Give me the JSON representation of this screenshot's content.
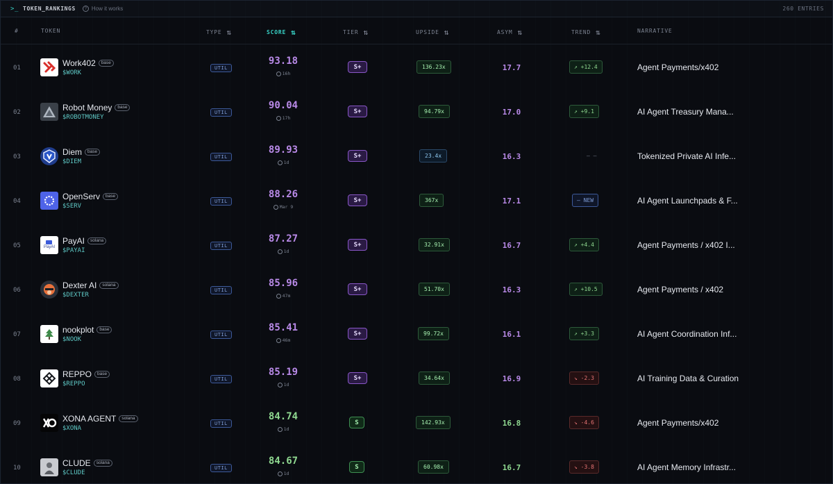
{
  "header": {
    "prompt_glyph": ">_",
    "title": "TOKEN_RANKINGS",
    "help": "How it works",
    "entries": "260 ENTRIES"
  },
  "columns": {
    "rank": "#",
    "token": "TOKEN",
    "type": "TYPE",
    "score": "SCORE",
    "tier": "TIER",
    "upside": "UPSIDE",
    "asym": "ASYM",
    "trend": "TREND",
    "narrative": "NARRATIVE",
    "sort_glyph": "⇅"
  },
  "colors": {
    "accent": "#38d3c7",
    "score_purple": "#b98ae8",
    "score_green": "#8fd890",
    "trend_down": "#e57373"
  },
  "rows": [
    {
      "rank": "01",
      "name": "Work402",
      "chain": "base",
      "ticker": "$WORK",
      "type": "UTIL",
      "score": "93.18",
      "age": "16h",
      "tier": "S+",
      "upside": "136.23x",
      "asym": "17.7",
      "trend": "↗ +12.4",
      "narrative": "Agent Payments/x402",
      "logo": "work402-logo"
    },
    {
      "rank": "02",
      "name": "Robot Money",
      "chain": "base",
      "ticker": "$ROBOTMONEY",
      "type": "UTIL",
      "score": "90.04",
      "age": "17h",
      "tier": "S+",
      "upside": "94.79x",
      "asym": "17.0",
      "trend": "↗ +9.1",
      "narrative": "AI Agent Treasury Mana...",
      "logo": "robot-money-logo"
    },
    {
      "rank": "03",
      "name": "Diem",
      "chain": "base",
      "ticker": "$DIEM",
      "type": "UTIL",
      "score": "89.93",
      "age": "1d",
      "tier": "S+",
      "upside": "23.4x",
      "asym": "16.3",
      "trend": "– –",
      "narrative": "Tokenized Private AI Infe...",
      "logo": "diem-logo"
    },
    {
      "rank": "04",
      "name": "OpenServ",
      "chain": "base",
      "ticker": "$SERV",
      "type": "UTIL",
      "score": "88.26",
      "age": "Mar 9",
      "tier": "S+",
      "upside": "367x",
      "asym": "17.1",
      "trend": "— NEW",
      "narrative": "AI Agent Launchpads & F...",
      "logo": "openserv-logo"
    },
    {
      "rank": "05",
      "name": "PayAI",
      "chain": "solana",
      "ticker": "$PAYAI",
      "type": "UTIL",
      "score": "87.27",
      "age": "1d",
      "tier": "S+",
      "upside": "32.91x",
      "asym": "16.7",
      "trend": "↗ +4.4",
      "narrative": "Agent Payments / x402 I...",
      "logo": "payai-logo"
    },
    {
      "rank": "06",
      "name": "Dexter AI",
      "chain": "solana",
      "ticker": "$DEXTER",
      "type": "UTIL",
      "score": "85.96",
      "age": "47m",
      "tier": "S+",
      "upside": "51.70x",
      "asym": "16.3",
      "trend": "↗ +10.5",
      "narrative": "Agent Payments / x402",
      "logo": "dexter-logo"
    },
    {
      "rank": "07",
      "name": "nookplot",
      "chain": "base",
      "ticker": "$NOOK",
      "type": "UTIL",
      "score": "85.41",
      "age": "46m",
      "tier": "S+",
      "upside": "99.72x",
      "asym": "16.1",
      "trend": "↗ +3.3",
      "narrative": "AI Agent Coordination Inf...",
      "logo": "nookplot-logo"
    },
    {
      "rank": "08",
      "name": "REPPO",
      "chain": "base",
      "ticker": "$REPPO",
      "type": "UTIL",
      "score": "85.19",
      "age": "1d",
      "tier": "S+",
      "upside": "34.64x",
      "asym": "16.9",
      "trend": "↘ -2.3",
      "narrative": "AI Training Data & Curation",
      "logo": "reppo-logo"
    },
    {
      "rank": "09",
      "name": "XONA AGENT",
      "chain": "solana",
      "ticker": "$XONA",
      "type": "UTIL",
      "score": "84.74",
      "age": "1d",
      "tier": "S",
      "upside": "142.93x",
      "asym": "16.8",
      "trend": "↘ -4.6",
      "narrative": "Agent Payments/x402",
      "logo": "xona-logo"
    },
    {
      "rank": "10",
      "name": "CLUDE",
      "chain": "solana",
      "ticker": "$CLUDE",
      "type": "UTIL",
      "score": "84.67",
      "age": "1d",
      "tier": "S",
      "upside": "60.98x",
      "asym": "16.7",
      "trend": "↘ -3.8",
      "narrative": "AI Agent Memory Infrastr...",
      "logo": "clude-logo"
    }
  ]
}
